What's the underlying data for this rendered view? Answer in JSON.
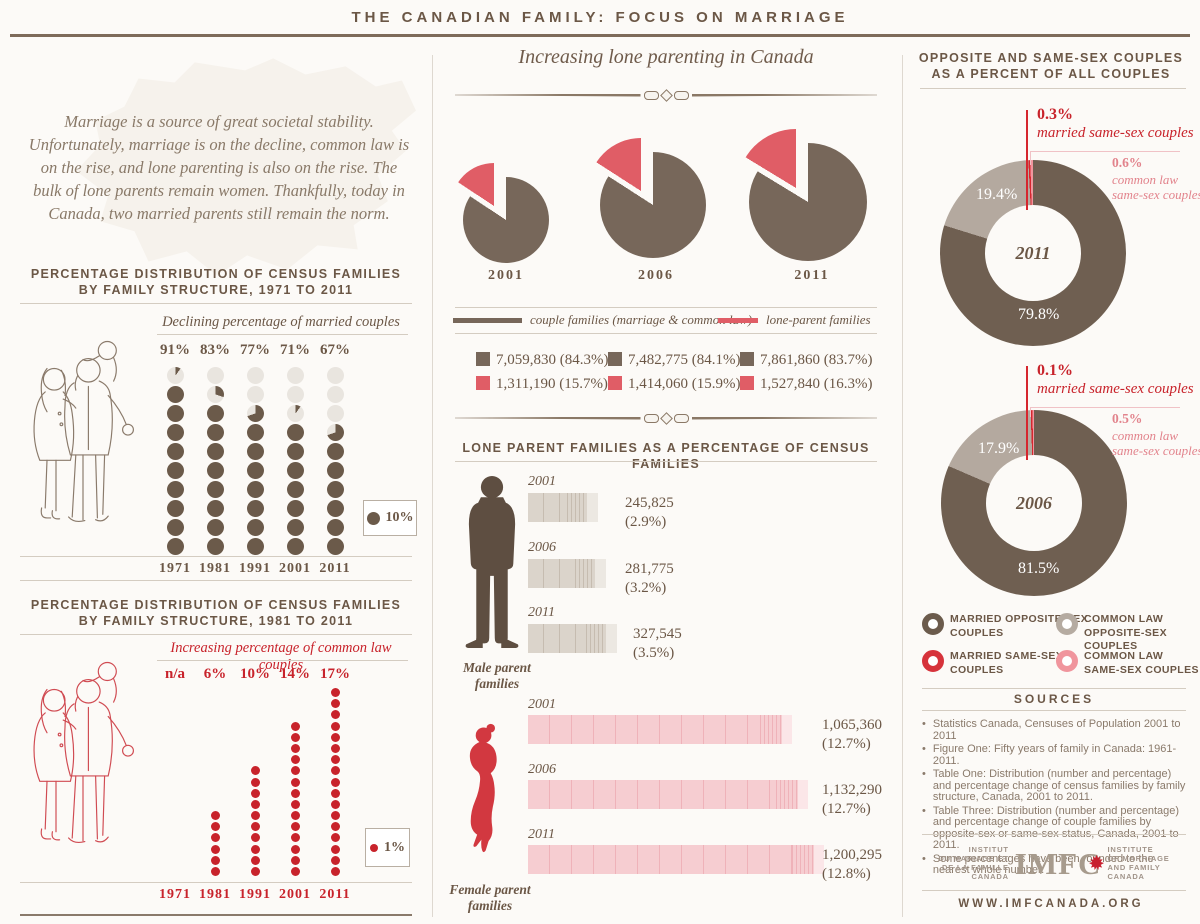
{
  "page_title": "THE CANADIAN FAMILY: FOCUS ON MARRIAGE",
  "intro": "Marriage is a source of great societal stability. Unfortunately, marriage is on the decline, common law is on the rise, and lone parenting is also on the rise. The bulk of lone parents remain women. Thankfully, today in Canada, two married parents still remain the norm.",
  "sections": {
    "chart1_title1": "PERCENTAGE DISTRIBUTION OF CENSUS FAMILIES",
    "chart1_title2": "BY FAMILY STRUCTURE, 1971 TO 2011",
    "chart2_title1": "PERCENTAGE DISTRIBUTION OF CENSUS FAMILIES",
    "chart2_title2": "BY FAMILY STRUCTURE, 1981 TO 2011",
    "bars_title": "LONE PARENT FAMILIES AS A PERCENTAGE OF CENSUS FAMILIES",
    "right_title1": "OPPOSITE AND SAME-SEX COUPLES",
    "right_title2": "AS A PERCENT OF ALL COUPLES",
    "male_label1": "Male parent",
    "male_label2": "families",
    "female_label1": "Female parent",
    "female_label2": "families"
  },
  "annotations": {
    "married_same": "married same-sex couples",
    "common_same1": "common law",
    "common_same2": "same-sex couples"
  },
  "samesex_legend": [
    {
      "line1": "MARRIED OPPOSITE-SEX",
      "line2": "COUPLES"
    },
    {
      "line1": "COMMON LAW",
      "line2": "OPPOSITE-SEX COUPLES"
    },
    {
      "line1": "MARRIED SAME-SEX",
      "line2": "COUPLES"
    },
    {
      "line1": "COMMON LAW",
      "line2": "SAME-SEX COUPLES"
    }
  ],
  "sources": {
    "title": "SOURCES",
    "items": [
      "Statistics Canada, Censuses of Population 2001 to 2011",
      "Figure One: Fifty years of family in Canada: 1961-2011.",
      "Table One: Distribution (number and percentage) and percentage change of census families by family structure, Canada, 2001 to 2011.",
      "Table Three: Distribution (number and percentage) and percentage change of couple families by opposite-sex or same-sex status, Canada, 2001 to 2011.",
      "Some percentages have been rounded to the nearest whole number."
    ]
  },
  "footer": {
    "logo_left": [
      "INSTITUT",
      "DU MARIAGE ET",
      "DE LA FAMILLE",
      "CANADA"
    ],
    "logo_center": "IMFC",
    "logo_right": [
      "INSTITUTE",
      "OF MARRIAGE",
      "AND FAMILY",
      "CANADA"
    ],
    "website": "WWW.IMFCANADA.ORG"
  },
  "colors": {
    "brown": "#6b5746",
    "taupe": "#b4a99f",
    "red": "#c8232b",
    "pink": "#f0959d",
    "pie_brown": "#77675a",
    "pie_red": "#e05d66"
  },
  "chart_data": [
    {
      "id": "married_dots",
      "type": "dot-matrix",
      "title": "Declining percentage of married couples",
      "unit_label": "10%",
      "unit_pct": 10,
      "categories": [
        "1971",
        "1981",
        "1991",
        "2001",
        "2011"
      ],
      "values": [
        91,
        83,
        77,
        71,
        67
      ],
      "value_labels": [
        "91%",
        "83%",
        "77%",
        "71%",
        "67%"
      ]
    },
    {
      "id": "commonlaw_dots",
      "type": "dot-matrix",
      "title": "Increasing percentage of common law couples",
      "unit_label": "1%",
      "unit_pct": 1,
      "categories": [
        "1971",
        "1981",
        "1991",
        "2001",
        "2011"
      ],
      "values": [
        null,
        6,
        10,
        14,
        17
      ],
      "value_labels": [
        "n/a",
        "6%",
        "10%",
        "14%",
        "17%"
      ]
    },
    {
      "id": "lone_parent_pies",
      "type": "pie",
      "title": "Increasing lone parenting in Canada",
      "categories": [
        "2001",
        "2006",
        "2011"
      ],
      "series": [
        {
          "name": "couple families (marriage & common law)",
          "values": [
            7059830,
            7482775,
            7861860
          ],
          "pct": [
            84.3,
            84.1,
            83.7
          ],
          "labels": [
            "7,059,830 (84.3%)",
            "7,482,775 (84.1%)",
            "7,861,860 (83.7%)"
          ]
        },
        {
          "name": "lone-parent families",
          "values": [
            1311190,
            1414060,
            1527840
          ],
          "pct": [
            15.7,
            15.9,
            16.3
          ],
          "labels": [
            "1,311,190 (15.7%)",
            "1,414,060 (15.9%)",
            "1,527,840 (16.3%)"
          ]
        }
      ]
    },
    {
      "id": "male_parent_bars",
      "type": "bar",
      "title": "Male parent families",
      "categories": [
        "2001",
        "2006",
        "2011"
      ],
      "values": [
        245825,
        281775,
        327545
      ],
      "value_labels": [
        "245,825",
        "281,775",
        "327,545"
      ],
      "pct_labels": [
        "(2.9%)",
        "(3.2%)",
        "(3.5%)"
      ]
    },
    {
      "id": "female_parent_bars",
      "type": "bar",
      "title": "Female parent families",
      "categories": [
        "2001",
        "2006",
        "2011"
      ],
      "values": [
        1065360,
        1132290,
        1200295
      ],
      "value_labels": [
        "1,065,360",
        "1,132,290",
        "1,200,295"
      ],
      "pct_labels": [
        "(12.7%)",
        "(12.7%)",
        "(12.8%)"
      ]
    },
    {
      "id": "couples_donuts",
      "type": "donut",
      "title": "OPPOSITE AND SAME-SEX COUPLES AS A PERCENT OF ALL COUPLES",
      "donuts": [
        {
          "year": "2011",
          "married_opposite_pct": 79.8,
          "common_law_opposite_pct": 19.4,
          "married_same_pct": 0.3,
          "common_law_same_pct": 0.6,
          "labels": {
            "married_opposite": "79.8%",
            "common_law_opposite": "19.4%",
            "married_same": "0.3%",
            "common_law_same": "0.6%"
          }
        },
        {
          "year": "2006",
          "married_opposite_pct": 81.5,
          "common_law_opposite_pct": 17.9,
          "married_same_pct": 0.1,
          "common_law_same_pct": 0.5,
          "labels": {
            "married_opposite": "81.5%",
            "common_law_opposite": "17.9%",
            "married_same": "0.1%",
            "common_law_same": "0.5%"
          }
        }
      ]
    }
  ]
}
